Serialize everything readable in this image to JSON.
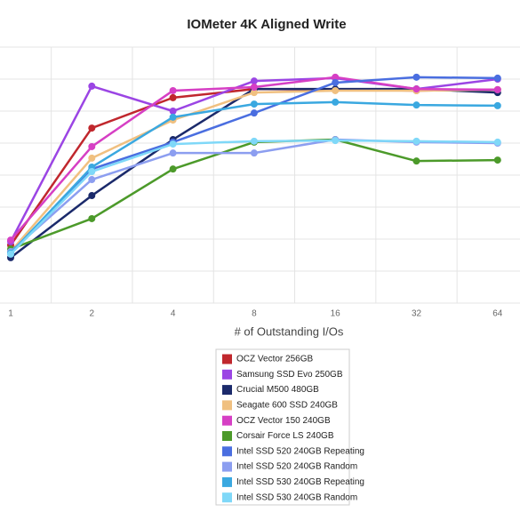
{
  "chart_data": {
    "type": "line",
    "title": "IOMeter 4K Aligned Write",
    "x_label": "# of Outstanding I/Os",
    "categories": [
      "1",
      "2",
      "4",
      "8",
      "16",
      "32",
      "64"
    ],
    "ylim": [
      0,
      8
    ],
    "grid": true,
    "series": [
      {
        "name": "OCZ Vector 256GB",
        "color": "#c0272d",
        "values": [
          1.81,
          5.47,
          6.42,
          6.69,
          6.67,
          6.64,
          6.67
        ]
      },
      {
        "name": "Samsung SSD Evo 250GB",
        "color": "#9b45e4",
        "values": [
          1.92,
          6.78,
          6.0,
          6.94,
          7.03,
          6.69,
          7.0
        ]
      },
      {
        "name": "Crucial M500 480GB",
        "color": "#1b2a6b",
        "values": [
          1.42,
          3.36,
          5.11,
          6.69,
          6.69,
          6.69,
          6.58
        ]
      },
      {
        "name": "Seagate 600 SSD 240GB",
        "color": "#f0c080",
        "values": [
          1.61,
          4.53,
          5.72,
          6.58,
          6.64,
          6.64,
          6.67
        ]
      },
      {
        "name": "OCZ Vector 150 240GB",
        "color": "#d63fc4",
        "values": [
          1.97,
          4.89,
          6.64,
          6.75,
          7.06,
          6.69,
          6.67
        ]
      },
      {
        "name": "Corsair Force LS 240GB",
        "color": "#4c9a2a",
        "values": [
          1.69,
          2.64,
          4.19,
          5.03,
          5.11,
          4.44,
          4.47
        ]
      },
      {
        "name": "Intel SSD 520 240GB Repeating",
        "color": "#4a6ee0",
        "values": [
          1.56,
          4.19,
          5.03,
          5.94,
          6.89,
          7.06,
          7.03
        ]
      },
      {
        "name": "Intel SSD 520 240GB Random",
        "color": "#8c9ef0",
        "values": [
          1.61,
          3.86,
          4.69,
          4.69,
          5.11,
          5.03,
          5.0
        ]
      },
      {
        "name": "Intel SSD 530 240GB Repeating",
        "color": "#3aa8e0",
        "values": [
          1.56,
          4.25,
          5.81,
          6.22,
          6.28,
          6.19,
          6.17
        ]
      },
      {
        "name": "Intel SSD 530 240GB Random",
        "color": "#7fd8f8",
        "values": [
          1.53,
          4.11,
          4.97,
          5.06,
          5.08,
          5.06,
          5.03
        ]
      }
    ]
  }
}
